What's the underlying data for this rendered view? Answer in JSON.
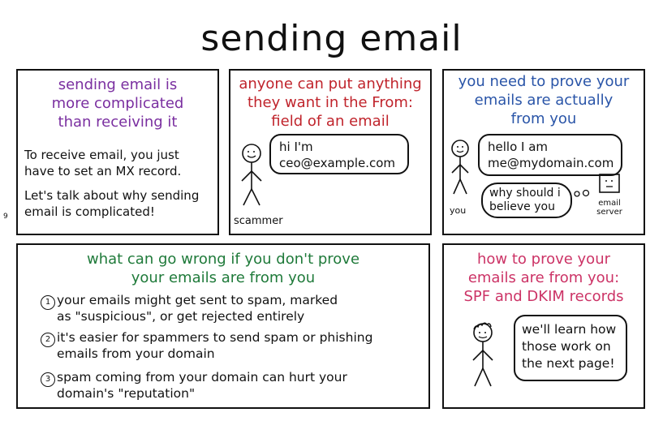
{
  "title": "sending email",
  "page_number": "9",
  "panel1": {
    "heading": [
      "sending email is",
      "more complicated",
      "than receiving it"
    ],
    "body1": [
      "To receive email, you just",
      "have to set an MX record."
    ],
    "body2": [
      "Let's talk about why sending",
      "email is complicated!"
    ]
  },
  "panel2": {
    "heading": [
      "anyone can put anything",
      "they want in the From:",
      "field of an email"
    ],
    "bubble": [
      "hi I'm",
      "ceo@example.com"
    ],
    "figure_label": "scammer"
  },
  "panel3": {
    "heading": [
      "you need to prove your",
      "emails are actually",
      "from you"
    ],
    "bubble_main": [
      "hello I am",
      "me@mydomain.com"
    ],
    "bubble_thought": [
      "why should i",
      "believe you"
    ],
    "you_label": "you",
    "server_label": [
      "email",
      "server"
    ]
  },
  "panel4": {
    "heading": [
      "what can go wrong if you don't prove",
      "your emails are from you"
    ],
    "items": [
      {
        "num": "1",
        "lines": [
          "your emails might get sent to spam, marked",
          "as \"suspicious\", or get rejected entirely"
        ]
      },
      {
        "num": "2",
        "lines": [
          "it's easier for spammers to send spam or phishing",
          "emails from your domain"
        ]
      },
      {
        "num": "3",
        "lines": [
          "spam coming from your domain can hurt your",
          "domain's \"reputation\""
        ]
      }
    ]
  },
  "panel5": {
    "heading": [
      "how to prove your",
      "emails are from you:",
      "SPF and DKIM records"
    ],
    "bubble": [
      "we'll learn how",
      "those work on",
      "the next page!"
    ]
  },
  "colors": {
    "purple": "#7a2fa0",
    "red": "#c0242c",
    "blue": "#2a55a8",
    "green": "#1f7a3a",
    "pink": "#cc3366"
  }
}
